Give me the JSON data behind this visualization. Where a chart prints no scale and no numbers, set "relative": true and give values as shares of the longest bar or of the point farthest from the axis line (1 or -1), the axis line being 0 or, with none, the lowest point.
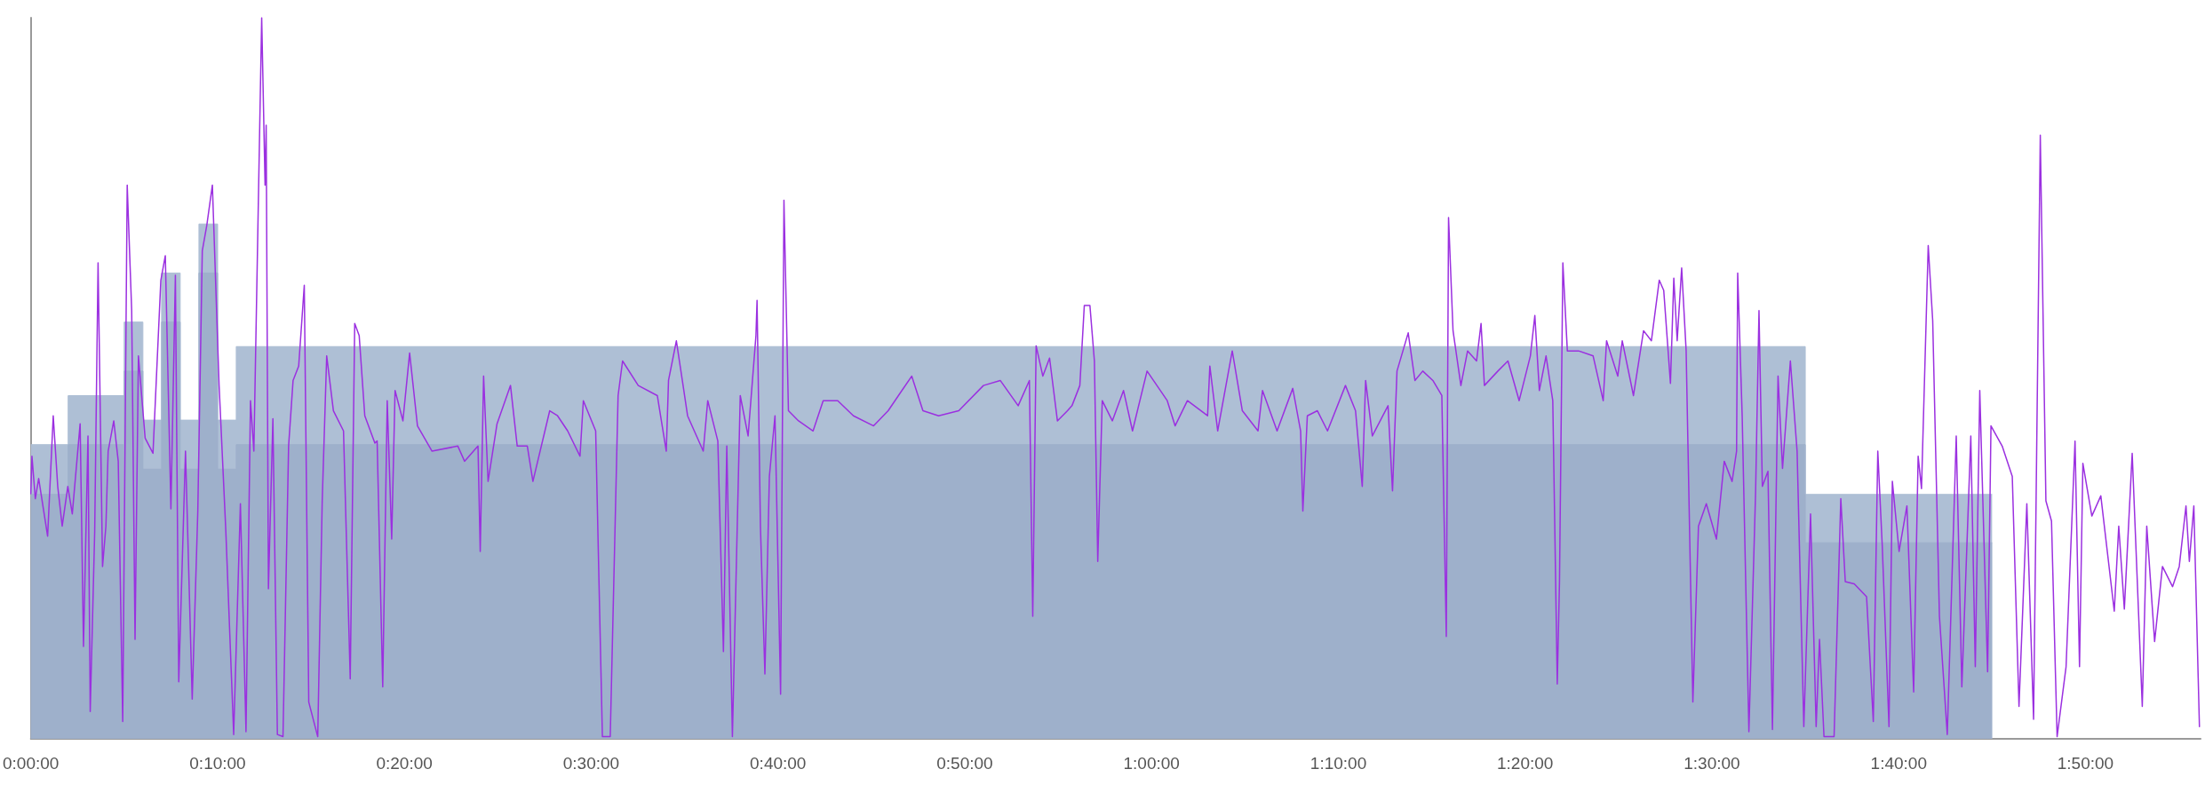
{
  "chart_data": {
    "type": "line",
    "relative": true,
    "grid": false,
    "marker": "none",
    "line_style": "solid",
    "xlim": [
      0,
      1.936
    ],
    "xticks": [
      {
        "value": 0,
        "label": "0:00:00"
      },
      {
        "value": 0.1667,
        "label": "0:10:00"
      },
      {
        "value": 0.3333,
        "label": "0:20:00"
      },
      {
        "value": 0.5,
        "label": "0:30:00"
      },
      {
        "value": 0.6667,
        "label": "0:40:00"
      },
      {
        "value": 0.8333,
        "label": "0:50:00"
      },
      {
        "value": 1,
        "label": "1:00:00"
      },
      {
        "value": 1.1667,
        "label": "1:10:00"
      },
      {
        "value": 1.3333,
        "label": "1:20:00"
      },
      {
        "value": 1.5,
        "label": "1:30:00"
      },
      {
        "value": 1.6667,
        "label": "1:40:00"
      },
      {
        "value": 1.8333,
        "label": "1:50:00"
      }
    ],
    "series": [
      {
        "type": "area",
        "color": "#aebfd5",
        "x": [
          0,
          0.0333,
          0.0333,
          0.0833,
          0.0833,
          0.1,
          0.1,
          0.1167,
          0.1167,
          0.1333,
          0.1333,
          0.15,
          0.15,
          0.1667,
          0.1667,
          0.1833,
          0.1833,
          1.5833,
          1.5833,
          1.75
        ],
        "values": [
          0.408,
          0.408,
          0.476,
          0.476,
          0.578,
          0.578,
          0.442,
          0.442,
          0.646,
          0.646,
          0.442,
          0.442,
          0.714,
          0.714,
          0.442,
          0.442,
          0.544,
          0.544,
          0.339,
          0.339
        ]
      },
      {
        "type": "area",
        "color": "#9eb0cb",
        "x": [
          0,
          0.0333,
          0.0333,
          0.0833,
          0.0833,
          0.1,
          0.1,
          0.1167,
          0.1167,
          0.1333,
          0.1333,
          0.15,
          0.15,
          0.1667,
          0.1667,
          0.1833,
          0.1833,
          1.5833,
          1.5833,
          1.75
        ],
        "values": [
          0.339,
          0.339,
          0.408,
          0.408,
          0.51,
          0.51,
          0.374,
          0.374,
          0.578,
          0.578,
          0.374,
          0.374,
          0.646,
          0.646,
          0.374,
          0.374,
          0.408,
          0.408,
          0.272,
          0.272
        ]
      },
      {
        "color": "#9b30e0",
        "x": [
          0,
          0.001,
          0.004,
          0.007,
          0.015,
          0.02,
          0.024,
          0.028,
          0.033,
          0.037,
          0.044,
          0.047,
          0.051,
          0.053,
          0.057,
          0.06,
          0.064,
          0.067,
          0.069,
          0.074,
          0.078,
          0.082,
          0.086,
          0.09,
          0.093,
          0.096,
          0.102,
          0.109,
          0.116,
          0.12,
          0.125,
          0.129,
          0.132,
          0.138,
          0.144,
          0.149,
          0.153,
          0.157,
          0.162,
          0.168,
          0.174,
          0.181,
          0.187,
          0.192,
          0.196,
          0.199,
          0.206,
          0.209,
          0.21,
          0.212,
          0.216,
          0.22,
          0.225,
          0.23,
          0.234,
          0.239,
          0.244,
          0.248,
          0.256,
          0.26,
          0.264,
          0.27,
          0.279,
          0.285,
          0.289,
          0.293,
          0.298,
          0.307,
          0.309,
          0.314,
          0.318,
          0.322,
          0.325,
          0.332,
          0.338,
          0.345,
          0.358,
          0.381,
          0.387,
          0.399,
          0.401,
          0.404,
          0.408,
          0.416,
          0.428,
          0.434,
          0.443,
          0.448,
          0.463,
          0.47,
          0.479,
          0.49,
          0.493,
          0.504,
          0.51,
          0.517,
          0.524,
          0.528,
          0.542,
          0.559,
          0.567,
          0.569,
          0.576,
          0.582,
          0.586,
          0.6,
          0.604,
          0.613,
          0.618,
          0.621,
          0.626,
          0.633,
          0.64,
          0.647,
          0.648,
          0.651,
          0.655,
          0.659,
          0.664,
          0.669,
          0.672,
          0.676,
          0.685,
          0.698,
          0.707,
          0.72,
          0.734,
          0.752,
          0.765,
          0.786,
          0.796,
          0.81,
          0.828,
          0.85,
          0.865,
          0.881,
          0.891,
          0.894,
          0.897,
          0.903,
          0.909,
          0.916,
          0.925,
          0.929,
          0.936,
          0.94,
          0.945,
          0.949,
          0.952,
          0.956,
          0.965,
          0.975,
          0.983,
          0.996,
          1.014,
          1.021,
          1.032,
          1.05,
          1.052,
          1.059,
          1.072,
          1.081,
          1.095,
          1.099,
          1.112,
          1.126,
          1.133,
          1.135,
          1.139,
          1.148,
          1.157,
          1.173,
          1.182,
          1.188,
          1.191,
          1.197,
          1.211,
          1.215,
          1.219,
          1.229,
          1.235,
          1.242,
          1.251,
          1.259,
          1.263,
          1.265,
          1.269,
          1.276,
          1.282,
          1.29,
          1.294,
          1.297,
          1.309,
          1.318,
          1.328,
          1.338,
          1.342,
          1.346,
          1.352,
          1.358,
          1.362,
          1.364,
          1.367,
          1.371,
          1.381,
          1.394,
          1.403,
          1.406,
          1.416,
          1.42,
          1.43,
          1.439,
          1.446,
          1.453,
          1.457,
          1.463,
          1.466,
          1.469,
          1.473,
          1.477,
          1.483,
          1.488,
          1.495,
          1.504,
          1.511,
          1.518,
          1.522,
          1.523,
          1.527,
          1.533,
          1.539,
          1.542,
          1.545,
          1.55,
          1.554,
          1.559,
          1.563,
          1.57,
          1.576,
          1.582,
          1.588,
          1.593,
          1.596,
          1.6,
          1.609,
          1.615,
          1.619,
          1.627,
          1.638,
          1.644,
          1.648,
          1.652,
          1.658,
          1.661,
          1.667,
          1.674,
          1.68,
          1.684,
          1.687,
          1.693,
          1.697,
          1.703,
          1.71,
          1.718,
          1.723,
          1.731,
          1.735,
          1.739,
          1.746,
          1.749,
          1.759,
          1.768,
          1.774,
          1.781,
          1.787,
          1.793,
          1.798,
          1.803,
          1.808,
          1.816,
          1.824,
          1.828,
          1.831,
          1.839,
          1.847,
          1.859,
          1.863,
          1.868,
          1.875,
          1.884,
          1.888,
          1.895,
          1.902,
          1.911,
          1.917,
          1.923,
          1.926,
          1.93,
          1.935
        ],
        "values": [
          0.34,
          0.392,
          0.333,
          0.361,
          0.281,
          0.448,
          0.35,
          0.295,
          0.35,
          0.312,
          0.437,
          0.128,
          0.42,
          0.038,
          0.288,
          0.66,
          0.239,
          0.295,
          0.399,
          0.441,
          0.385,
          0.024,
          0.768,
          0.594,
          0.138,
          0.531,
          0.417,
          0.396,
          0.636,
          0.67,
          0.319,
          0.643,
          0.079,
          0.399,
          0.055,
          0.316,
          0.677,
          0.712,
          0.768,
          0.49,
          0.288,
          0.006,
          0.326,
          0.01,
          0.469,
          0.399,
          1,
          0.768,
          0.851,
          0.208,
          0.444,
          0.006,
          0.003,
          0.406,
          0.497,
          0.517,
          0.629,
          0.051,
          0.003,
          0.33,
          0.531,
          0.455,
          0.427,
          0.083,
          0.576,
          0.559,
          0.448,
          0.41,
          0.413,
          0.072,
          0.469,
          0.277,
          0.483,
          0.441,
          0.535,
          0.434,
          0.399,
          0.406,
          0.385,
          0.406,
          0.26,
          0.503,
          0.357,
          0.437,
          0.49,
          0.406,
          0.406,
          0.357,
          0.455,
          0.448,
          0.427,
          0.392,
          0.469,
          0.427,
          0.003,
          0.003,
          0.476,
          0.524,
          0.49,
          0.476,
          0.399,
          0.497,
          0.552,
          0.49,
          0.448,
          0.399,
          0.469,
          0.413,
          0.121,
          0.406,
          0.003,
          0.476,
          0.42,
          0.559,
          0.608,
          0.295,
          0.09,
          0.364,
          0.448,
          0.062,
          0.747,
          0.455,
          0.441,
          0.427,
          0.469,
          0.469,
          0.448,
          0.434,
          0.455,
          0.503,
          0.455,
          0.448,
          0.455,
          0.49,
          0.497,
          0.462,
          0.497,
          0.17,
          0.545,
          0.503,
          0.528,
          0.441,
          0.455,
          0.462,
          0.49,
          0.601,
          0.601,
          0.524,
          0.246,
          0.469,
          0.441,
          0.483,
          0.427,
          0.51,
          0.469,
          0.434,
          0.469,
          0.448,
          0.517,
          0.427,
          0.538,
          0.455,
          0.427,
          0.483,
          0.427,
          0.486,
          0.427,
          0.316,
          0.448,
          0.455,
          0.427,
          0.49,
          0.455,
          0.35,
          0.497,
          0.42,
          0.462,
          0.344,
          0.51,
          0.563,
          0.497,
          0.51,
          0.497,
          0.476,
          0.142,
          0.723,
          0.566,
          0.49,
          0.538,
          0.524,
          0.576,
          0.49,
          0.51,
          0.524,
          0.469,
          0.531,
          0.587,
          0.483,
          0.531,
          0.469,
          0.076,
          0.218,
          0.66,
          0.538,
          0.538,
          0.531,
          0.469,
          0.552,
          0.503,
          0.552,
          0.476,
          0.566,
          0.552,
          0.636,
          0.622,
          0.493,
          0.639,
          0.552,
          0.653,
          0.538,
          0.051,
          0.295,
          0.326,
          0.277,
          0.385,
          0.357,
          0.399,
          0.646,
          0.448,
          0.01,
          0.344,
          0.594,
          0.35,
          0.371,
          0.013,
          0.503,
          0.375,
          0.524,
          0.399,
          0.017,
          0.312,
          0.017,
          0.138,
          0.003,
          0.003,
          0.333,
          0.218,
          0.215,
          0.197,
          0.024,
          0.399,
          0.267,
          0.017,
          0.357,
          0.26,
          0.323,
          0.065,
          0.392,
          0.347,
          0.684,
          0.58,
          0.17,
          0.006,
          0.42,
          0.072,
          0.42,
          0.1,
          0.483,
          0.093,
          0.434,
          0.406,
          0.364,
          0.045,
          0.326,
          0.027,
          0.837,
          0.33,
          0.302,
          0.003,
          0.1,
          0.413,
          0.1,
          0.382,
          0.309,
          0.337,
          0.177,
          0.295,
          0.18,
          0.396,
          0.045,
          0.295,
          0.135,
          0.239,
          0.211,
          0.239,
          0.323,
          0.246,
          0.323,
          0.017
        ]
      }
    ]
  }
}
